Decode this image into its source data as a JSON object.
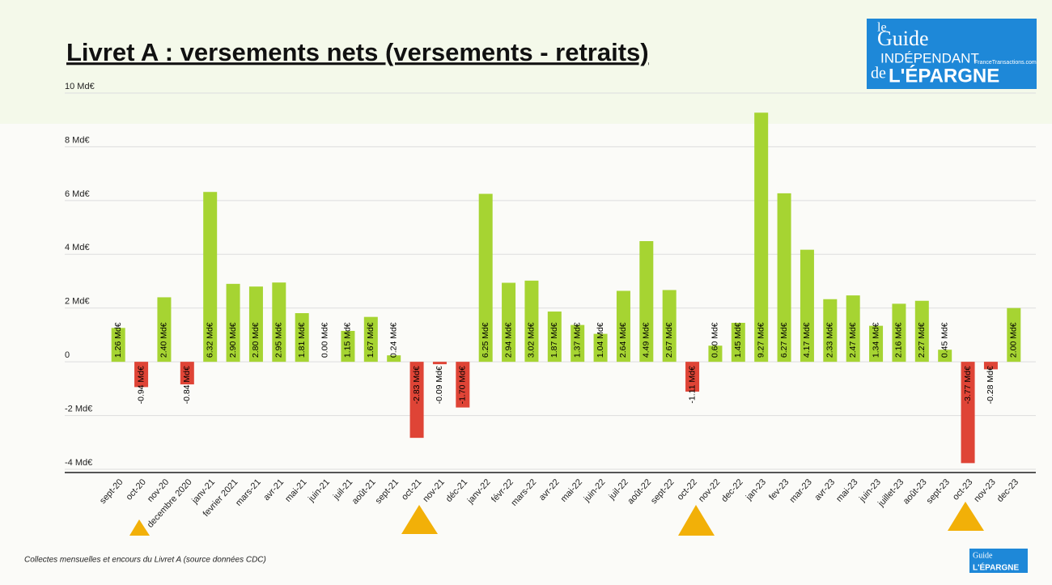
{
  "chart_data": {
    "type": "bar",
    "title": "Livret A : versements nets (versements - retraits)",
    "footnote": "Collectes mensuelles et encours du Livret A (source données CDC)",
    "logo": {
      "le": "le",
      "guide": "Guide",
      "independant": "INDÉPENDANT",
      "de": "de",
      "epargne": "L'ÉPARGNE",
      "site": "FranceTransactions.com"
    },
    "categories": [
      "sept-20",
      "oct-20",
      "nov-20",
      "decembre 2020",
      "janv-21",
      "fevrier 2021",
      "mars-21",
      "avr-21",
      "mai-21",
      "juin-21",
      "juil-21",
      "août-21",
      "sept-21",
      "oct-21",
      "nov-21",
      "déc-21",
      "janv-22",
      "févr-22",
      "mars-22",
      "avr-22",
      "mai-22",
      "juin-22",
      "juil-22",
      "août-22",
      "sept-22",
      "oct-22",
      "nov-22",
      "dec-22",
      "jan-23",
      "fev-23",
      "mar-23",
      "avr-23",
      "mai-23",
      "juin-23",
      "juillet-23",
      "août-23",
      "sept-23",
      "oct-23",
      "nov-23",
      "dec-23"
    ],
    "values": [
      1.26,
      -0.94,
      2.4,
      -0.84,
      6.32,
      2.9,
      2.8,
      2.95,
      1.81,
      0.0,
      1.15,
      1.67,
      0.24,
      -2.83,
      -0.09,
      -1.7,
      6.25,
      2.94,
      3.02,
      1.87,
      1.37,
      1.04,
      2.64,
      4.49,
      2.67,
      -1.11,
      0.6,
      1.45,
      9.27,
      6.27,
      4.17,
      2.33,
      2.47,
      1.34,
      2.16,
      2.27,
      0.45,
      -3.77,
      -0.28,
      2.0
    ],
    "value_labels": [
      "1.26 Md€",
      "-0.94 Md€",
      "2.40 Md€",
      "-0.84 Md€",
      "6.32 Md€",
      "2.90 Md€",
      "2.80 Md€",
      "2.95 Md€",
      "1.81 Md€",
      "0.00 Md€",
      "1.15 Md€",
      "1.67 Md€",
      "0.24 Md€",
      "-2.83 Md€",
      "-0.09 Md€",
      "-1.70 Md€",
      "6.25 Md€",
      "2.94 Md€",
      "3.02 Md€",
      "1.87 Md€",
      "1.37 Md€",
      "1.04 Md€",
      "2.64 Md€",
      "4.49 Md€",
      "2.67 Md€",
      "-1.11 Md€",
      "0.60 Md€",
      "1.45 Md€",
      "9.27 Md€",
      "6.27 Md€",
      "4.17 Md€",
      "2.33 Md€",
      "2.47 Md€",
      "1.34 Md€",
      "2.16 Md€",
      "2.27 Md€",
      "0.45 Md€",
      "-3.77 Md€",
      "-0.28 Md€",
      "2.00 Md€"
    ],
    "color": "#a6d432",
    "negative_color": "#df4436",
    "ylim": [
      -4,
      10
    ],
    "yticks": [
      {
        "value": -4,
        "label": "-4 Md€"
      },
      {
        "value": -2,
        "label": "-2 Md€"
      },
      0,
      {
        "value": 2,
        "label": "2 Md€"
      },
      {
        "value": 4,
        "label": "4 Md€"
      },
      {
        "value": 6,
        "label": "6 Md€"
      },
      {
        "value": 8,
        "label": "8 Md€"
      },
      {
        "value": 10,
        "label": "10 Md€"
      }
    ],
    "grid": true
  }
}
